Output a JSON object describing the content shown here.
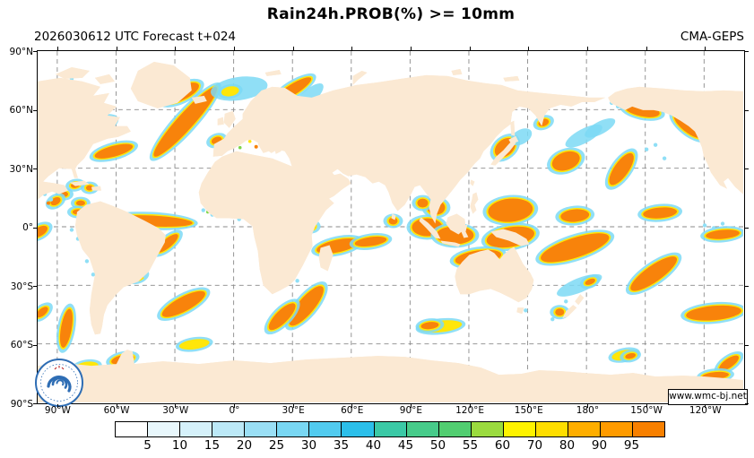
{
  "header": {
    "title": "Rain24h.PROB(%) >= 10mm",
    "subtitle": "2026030612 UTC Forecast t+024",
    "model": "CMA-GEPS"
  },
  "map": {
    "x_tick_labels": [
      "90°W",
      "60°W",
      "30°W",
      "0°",
      "30°E",
      "60°E",
      "90°E",
      "120°E",
      "150°E",
      "180°",
      "150°W",
      "120°W"
    ],
    "y_tick_labels": [
      "90°N",
      "60°N",
      "30°N",
      "0°",
      "30°S",
      "60°S",
      "90°S"
    ],
    "watermark": "www.wmc-bj.net",
    "colors": {
      "land": "#FBE9D3",
      "ocean": "#FFFFFF",
      "grid": "#8A8A8A",
      "coast": "#3A3A3A",
      "prob_low": "#7CD9F4",
      "prob_mid": "#FFE60A",
      "prob_high": "#F8830B"
    }
  },
  "colorbar": {
    "tick_values": [
      "5",
      "10",
      "15",
      "20",
      "25",
      "30",
      "35",
      "40",
      "45",
      "50",
      "55",
      "60",
      "70",
      "80",
      "90",
      "95"
    ],
    "segment_colors": [
      "#FFFFFF",
      "#E8F7FC",
      "#D5F1FA",
      "#BCE9F7",
      "#9ADFF5",
      "#79D7F3",
      "#52CBEF",
      "#2CBFEA",
      "#3BC9A6",
      "#47CB8A",
      "#52CE71",
      "#9BDB3F",
      "#FFF300",
      "#FFDE00",
      "#FFAE00",
      "#FF9B00",
      "#F88000"
    ]
  }
}
